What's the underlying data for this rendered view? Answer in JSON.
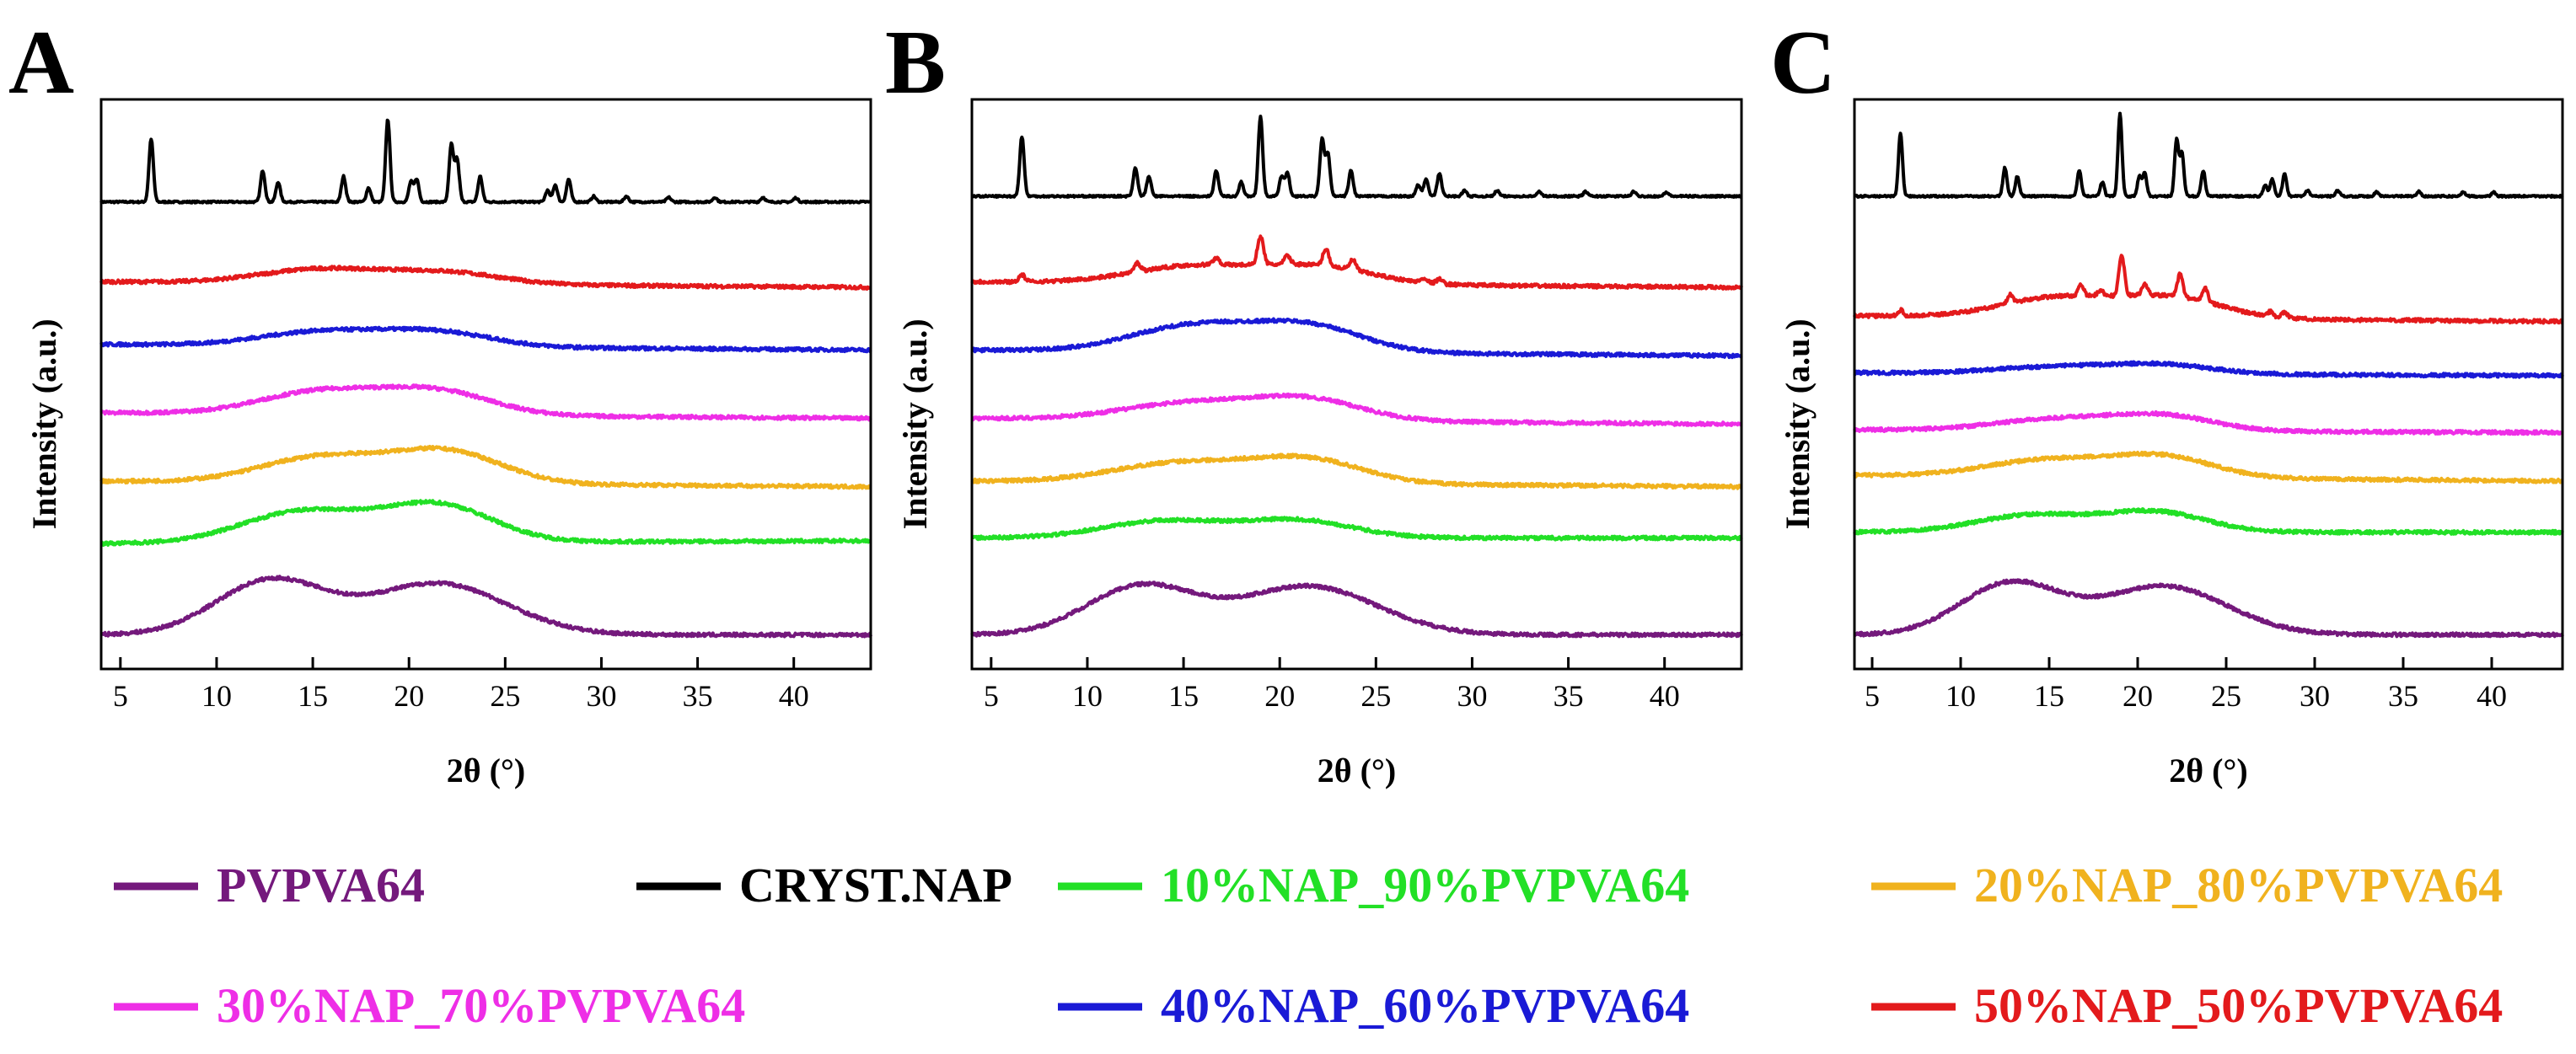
{
  "chart_data": [
    {
      "type": "line",
      "panel_label": "A",
      "xlabel": "2θ (°)",
      "ylabel": "Intensity (a.u.)",
      "xlim": [
        4,
        44
      ],
      "xticks": [
        5,
        10,
        15,
        20,
        25,
        30,
        35,
        40
      ],
      "y_ticks_shown": false,
      "series": [
        {
          "name": "CRYST.NAP",
          "color": "#000000",
          "baseline": 8.6,
          "shape": "crystalline",
          "peaks": [
            [
              6.6,
              1.1
            ],
            [
              12.4,
              0.55
            ],
            [
              13.2,
              0.35
            ],
            [
              16.6,
              0.45
            ],
            [
              17.9,
              0.25
            ],
            [
              18.9,
              1.45
            ],
            [
              20.1,
              0.35
            ],
            [
              20.4,
              0.4
            ],
            [
              22.2,
              1.0
            ],
            [
              22.5,
              0.75
            ],
            [
              23.7,
              0.45
            ],
            [
              27.2,
              0.2
            ],
            [
              27.6,
              0.3
            ],
            [
              28.3,
              0.4
            ],
            [
              29.6,
              0.1
            ],
            [
              31.3,
              0.1
            ],
            [
              33.5,
              0.08
            ],
            [
              35.9,
              0.08
            ],
            [
              38.4,
              0.08
            ],
            [
              40.1,
              0.07
            ]
          ]
        },
        {
          "name": "50%NAP_50%PVPVA64",
          "color": "#e31a1c",
          "baseline": 7.2,
          "halo": [
            [
              15.5,
              0.25,
              4.5
            ],
            [
              22,
              0.2,
              4
            ]
          ],
          "tail": -0.1,
          "peaks": []
        },
        {
          "name": "40%NAP_60%PVPVA64",
          "color": "#1a1ad6",
          "baseline": 6.1,
          "halo": [
            [
              15.5,
              0.25,
              4.5
            ],
            [
              21.5,
              0.25,
              4
            ]
          ],
          "tail": -0.1,
          "peaks": []
        },
        {
          "name": "30%NAP_70%PVPVA64",
          "color": "#ee2ee6",
          "baseline": 4.9,
          "halo": [
            [
              15.5,
              0.4,
              4.5
            ],
            [
              21.5,
              0.4,
              4
            ]
          ],
          "tail": -0.1,
          "peaks": []
        },
        {
          "name": "20%NAP_80%PVPVA64",
          "color": "#f0b21e",
          "baseline": 3.7,
          "halo": [
            [
              15.5,
              0.45,
              4.5
            ],
            [
              22,
              0.55,
              4
            ]
          ],
          "tail": -0.1,
          "peaks": []
        },
        {
          "name": "10%NAP_90%PVPVA64",
          "color": "#22e026",
          "baseline": 2.6,
          "halo": [
            [
              14.5,
              0.55,
              4.5
            ],
            [
              21.5,
              0.65,
              4
            ]
          ],
          "tail": 0.05,
          "peaks": []
        },
        {
          "name": "PVPVA64",
          "color": "#74197c",
          "baseline": 1.0,
          "halo": [
            [
              12.8,
              0.95,
              4.0
            ],
            [
              21.5,
              0.9,
              5.0
            ]
          ],
          "tail": 0.0,
          "peaks": []
        }
      ]
    },
    {
      "type": "line",
      "panel_label": "B",
      "xlabel": "2θ (°)",
      "ylabel": "Intensity (a.u.)",
      "xlim": [
        4,
        44
      ],
      "xticks": [
        5,
        10,
        15,
        20,
        25,
        30,
        35,
        40
      ],
      "y_ticks_shown": false,
      "series": [
        {
          "name": "CRYST.NAP",
          "color": "#000000",
          "baseline": 8.7,
          "shape": "crystalline",
          "peaks": [
            [
              6.6,
              1.05
            ],
            [
              12.5,
              0.5
            ],
            [
              13.2,
              0.35
            ],
            [
              16.7,
              0.45
            ],
            [
              18.0,
              0.25
            ],
            [
              19.0,
              1.4
            ],
            [
              20.1,
              0.35
            ],
            [
              20.4,
              0.4
            ],
            [
              22.2,
              1.0
            ],
            [
              22.5,
              0.75
            ],
            [
              23.7,
              0.45
            ],
            [
              27.2,
              0.2
            ],
            [
              27.6,
              0.3
            ],
            [
              28.3,
              0.4
            ],
            [
              29.6,
              0.1
            ],
            [
              31.3,
              0.1
            ],
            [
              33.5,
              0.08
            ],
            [
              35.9,
              0.08
            ],
            [
              38.4,
              0.08
            ],
            [
              40.1,
              0.07
            ]
          ]
        },
        {
          "name": "50%NAP_50%PVPVA64",
          "color": "#e31a1c",
          "baseline": 7.2,
          "halo": [
            [
              15.5,
              0.3,
              4.5
            ],
            [
              22,
              0.3,
              4
            ]
          ],
          "tail": -0.1,
          "peaks": [
            [
              6.6,
              0.12
            ],
            [
              12.6,
              0.15
            ],
            [
              16.7,
              0.12
            ],
            [
              19.0,
              0.5
            ],
            [
              20.4,
              0.15
            ],
            [
              22.4,
              0.3
            ],
            [
              23.8,
              0.18
            ],
            [
              27.5,
              0.08
            ],
            [
              28.3,
              0.08
            ]
          ]
        },
        {
          "name": "40%NAP_60%PVPVA64",
          "color": "#1a1ad6",
          "baseline": 6.0,
          "halo": [
            [
              15.5,
              0.45,
              4.5
            ],
            [
              21.5,
              0.45,
              4
            ]
          ],
          "tail": -0.1,
          "peaks": []
        },
        {
          "name": "30%NAP_70%PVPVA64",
          "color": "#ee2ee6",
          "baseline": 4.8,
          "halo": [
            [
              15.5,
              0.3,
              5
            ],
            [
              21.5,
              0.35,
              4
            ]
          ],
          "tail": -0.1,
          "peaks": []
        },
        {
          "name": "20%NAP_80%PVPVA64",
          "color": "#f0b21e",
          "baseline": 3.7,
          "halo": [
            [
              15,
              0.35,
              5
            ],
            [
              21.5,
              0.4,
              4
            ]
          ],
          "tail": -0.1,
          "peaks": []
        },
        {
          "name": "10%NAP_90%PVPVA64",
          "color": "#22e026",
          "baseline": 2.7,
          "halo": [
            [
              14,
              0.3,
              4.5
            ],
            [
              21,
              0.3,
              4
            ]
          ],
          "tail": 0.0,
          "peaks": []
        },
        {
          "name": "PVPVA64",
          "color": "#74197c",
          "baseline": 1.0,
          "halo": [
            [
              12.8,
              0.85,
              4.0
            ],
            [
              21.5,
              0.85,
              5.0
            ]
          ],
          "tail": 0.0,
          "peaks": []
        }
      ]
    },
    {
      "type": "line",
      "panel_label": "C",
      "xlabel": "2θ (°)",
      "ylabel": "Intensity (a.u.)",
      "xlim": [
        4,
        44
      ],
      "xticks": [
        5,
        10,
        15,
        20,
        25,
        30,
        35,
        40
      ],
      "y_ticks_shown": false,
      "series": [
        {
          "name": "CRYST.NAP",
          "color": "#000000",
          "baseline": 8.7,
          "shape": "crystalline",
          "peaks": [
            [
              6.6,
              1.1
            ],
            [
              12.5,
              0.5
            ],
            [
              13.2,
              0.35
            ],
            [
              16.7,
              0.45
            ],
            [
              18.0,
              0.25
            ],
            [
              19.0,
              1.45
            ],
            [
              20.1,
              0.35
            ],
            [
              20.4,
              0.4
            ],
            [
              22.2,
              1.0
            ],
            [
              22.5,
              0.75
            ],
            [
              23.7,
              0.45
            ],
            [
              27.2,
              0.2
            ],
            [
              27.6,
              0.3
            ],
            [
              28.3,
              0.4
            ],
            [
              29.6,
              0.1
            ],
            [
              31.3,
              0.1
            ],
            [
              33.5,
              0.08
            ],
            [
              35.9,
              0.08
            ],
            [
              38.4,
              0.08
            ],
            [
              40.1,
              0.07
            ]
          ]
        },
        {
          "name": "50%NAP_50%PVPVA64",
          "color": "#e31a1c",
          "baseline": 6.6,
          "halo": [
            [
              15.5,
              0.35,
              4.5
            ],
            [
              22,
              0.35,
              4
            ]
          ],
          "tail": -0.1,
          "peaks": [
            [
              6.6,
              0.1
            ],
            [
              12.8,
              0.15
            ],
            [
              16.8,
              0.18
            ],
            [
              17.9,
              0.1
            ],
            [
              19.1,
              0.7
            ],
            [
              20.4,
              0.2
            ],
            [
              22.4,
              0.4
            ],
            [
              23.8,
              0.25
            ],
            [
              27.5,
              0.08
            ],
            [
              28.3,
              0.1
            ]
          ]
        },
        {
          "name": "40%NAP_60%PVPVA64",
          "color": "#1a1ad6",
          "baseline": 5.6,
          "halo": [
            [
              15.5,
              0.12,
              5
            ],
            [
              21.5,
              0.15,
              4
            ]
          ],
          "tail": -0.05,
          "peaks": []
        },
        {
          "name": "30%NAP_70%PVPVA64",
          "color": "#ee2ee6",
          "baseline": 4.6,
          "halo": [
            [
              15.5,
              0.2,
              5
            ],
            [
              21.5,
              0.25,
              4
            ]
          ],
          "tail": -0.05,
          "peaks": []
        },
        {
          "name": "20%NAP_80%PVPVA64",
          "color": "#f0b21e",
          "baseline": 3.8,
          "halo": [
            [
              15,
              0.3,
              5
            ],
            [
              21.5,
              0.35,
              4
            ]
          ],
          "tail": -0.1,
          "peaks": []
        },
        {
          "name": "10%NAP_90%PVPVA64",
          "color": "#22e026",
          "baseline": 2.8,
          "halo": [
            [
              14,
              0.3,
              4.5
            ],
            [
              21,
              0.35,
              4
            ]
          ],
          "tail": 0.0,
          "peaks": []
        },
        {
          "name": "PVPVA64",
          "color": "#74197c",
          "baseline": 1.0,
          "halo": [
            [
              12.8,
              0.9,
              4.0
            ],
            [
              21.5,
              0.85,
              5.0
            ]
          ],
          "tail": 0.0,
          "peaks": []
        }
      ]
    }
  ],
  "legend": [
    {
      "label": "PVPVA64",
      "color": "#74197c"
    },
    {
      "label": "CRYST.NAP",
      "color": "#000000"
    },
    {
      "label": "10%NAP_90%PVPVA64",
      "color": "#22e026"
    },
    {
      "label": "20%NAP_80%PVPVA64",
      "color": "#f0b21e"
    },
    {
      "label": "30%NAP_70%PVPVA64",
      "color": "#ee2ee6"
    },
    {
      "label": "40%NAP_60%PVPVA64",
      "color": "#1a1ad6"
    },
    {
      "label": "50%NAP_50%PVPVA64",
      "color": "#e31a1c"
    }
  ]
}
